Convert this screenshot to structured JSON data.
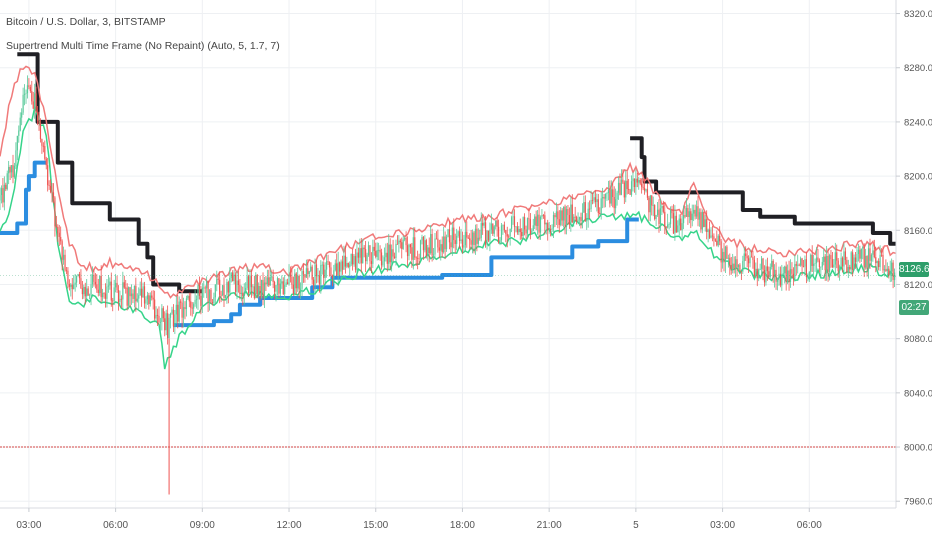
{
  "header": {
    "symbol_line": "Bitcoin / U.S. Dollar, 3, BITSTAMP",
    "indicator_line": "Supertrend Multi Time Frame (No Repaint) (Auto, 5, 1.7, 7)"
  },
  "price_tags": {
    "last_price": "8126.60",
    "countdown": "02:27"
  },
  "colors": {
    "background": "#ffffff",
    "grid": "#eef0f3",
    "candle_up": "#58c99a",
    "candle_down": "#ef5350",
    "trend_up": "#2b8de0",
    "trend_down": "#1f1f24",
    "supertrend_up_tf": "#36d48a",
    "supertrend_down_tf": "#f07a7a",
    "reference_line": "#d04545",
    "axis_text": "#555555"
  },
  "chart_data": {
    "type": "line",
    "title": "Bitcoin / U.S. Dollar, 3, BITSTAMP",
    "x_ticks": [
      "03:00",
      "06:00",
      "09:00",
      "12:00",
      "15:00",
      "18:00",
      "21:00",
      "5",
      "03:00",
      "06:00"
    ],
    "x_tick_times": [
      3,
      6,
      9,
      12,
      15,
      18,
      21,
      24,
      27,
      30
    ],
    "xlim": [
      2,
      33
    ],
    "y_ticks": [
      "8320.00",
      "8280.00",
      "8240.00",
      "8200.00",
      "8160.00",
      "8120.00",
      "8080.00",
      "8040.00",
      "8000.00",
      "7960.00"
    ],
    "ylim": [
      7955,
      8330
    ],
    "reference_line": 8000,
    "last_price": 8126.6,
    "grid": true,
    "series": [
      {
        "style": "step",
        "points": [
          [
            2.0,
            8158
          ],
          [
            2.6,
            8158
          ],
          [
            2.6,
            8165
          ],
          [
            2.9,
            8165
          ],
          [
            2.9,
            8190
          ],
          [
            3.0,
            8190
          ],
          [
            3.0,
            8200
          ],
          [
            3.2,
            8200
          ],
          [
            3.2,
            8210
          ],
          [
            3.6,
            8210
          ]
        ]
      },
      {
        "style": "step",
        "points": [
          [
            2.6,
            8290
          ],
          [
            3.3,
            8290
          ],
          [
            3.3,
            8240
          ],
          [
            4.0,
            8240
          ],
          [
            4.0,
            8210
          ],
          [
            4.5,
            8210
          ],
          [
            4.5,
            8180
          ],
          [
            5.8,
            8180
          ],
          [
            5.8,
            8168
          ],
          [
            6.8,
            8168
          ],
          [
            6.8,
            8150
          ],
          [
            7.1,
            8150
          ],
          [
            7.1,
            8140
          ],
          [
            7.3,
            8140
          ],
          [
            7.3,
            8120
          ],
          [
            8.2,
            8120
          ],
          [
            8.2,
            8115
          ],
          [
            9.0,
            8115
          ]
        ]
      },
      {
        "style": "step",
        "points": [
          [
            8.0,
            8090
          ],
          [
            9.4,
            8090
          ],
          [
            9.4,
            8093
          ],
          [
            10.0,
            8093
          ],
          [
            10.0,
            8098
          ],
          [
            10.3,
            8098
          ],
          [
            10.3,
            8105
          ],
          [
            11.0,
            8105
          ],
          [
            11.0,
            8110
          ],
          [
            12.8,
            8110
          ],
          [
            12.8,
            8118
          ],
          [
            13.5,
            8118
          ],
          [
            13.5,
            8125
          ],
          [
            17.3,
            8125
          ],
          [
            17.3,
            8127
          ],
          [
            19.0,
            8127
          ],
          [
            19.0,
            8140
          ],
          [
            21.8,
            8140
          ],
          [
            21.8,
            8148
          ],
          [
            22.7,
            8148
          ],
          [
            22.7,
            8152
          ],
          [
            23.7,
            8152
          ],
          [
            23.7,
            8168
          ],
          [
            24.1,
            8168
          ]
        ]
      },
      {
        "style": "step",
        "points": [
          [
            23.8,
            8228
          ],
          [
            24.2,
            8228
          ],
          [
            24.2,
            8214
          ],
          [
            24.3,
            8214
          ],
          [
            24.3,
            8196
          ],
          [
            24.7,
            8196
          ],
          [
            24.7,
            8188
          ],
          [
            27.7,
            8188
          ],
          [
            27.7,
            8175
          ],
          [
            28.3,
            8175
          ],
          [
            28.3,
            8170
          ],
          [
            29.5,
            8170
          ],
          [
            29.5,
            8165
          ],
          [
            32.2,
            8165
          ],
          [
            32.2,
            8158
          ],
          [
            32.8,
            8158
          ],
          [
            32.8,
            8150
          ],
          [
            33.0,
            8150
          ]
        ]
      },
      {
        "style": "noisy",
        "points": [
          [
            2.0,
            8160
          ],
          [
            2.4,
            8178
          ],
          [
            2.8,
            8232
          ],
          [
            3.2,
            8248
          ],
          [
            3.6,
            8232
          ],
          [
            4.0,
            8150
          ],
          [
            4.4,
            8108
          ],
          [
            4.8,
            8106
          ],
          [
            5.3,
            8110
          ],
          [
            5.8,
            8108
          ],
          [
            6.4,
            8103
          ],
          [
            7.0,
            8098
          ],
          [
            7.5,
            8089
          ],
          [
            7.7,
            8060
          ],
          [
            8.0,
            8074
          ],
          [
            8.6,
            8092
          ],
          [
            9.2,
            8106
          ],
          [
            10.0,
            8112
          ],
          [
            11.0,
            8113
          ],
          [
            12.0,
            8112
          ],
          [
            13.0,
            8117
          ],
          [
            14.0,
            8126
          ],
          [
            15.0,
            8131
          ],
          [
            16.0,
            8135
          ],
          [
            17.0,
            8140
          ],
          [
            18.0,
            8146
          ],
          [
            19.0,
            8150
          ],
          [
            20.0,
            8153
          ],
          [
            21.0,
            8158
          ],
          [
            22.0,
            8165
          ],
          [
            23.0,
            8170
          ],
          [
            23.8,
            8172
          ],
          [
            24.4,
            8168
          ],
          [
            25.0,
            8160
          ],
          [
            25.6,
            8155
          ],
          [
            26.0,
            8160
          ],
          [
            26.6,
            8145
          ],
          [
            27.0,
            8136
          ],
          [
            28.0,
            8128
          ],
          [
            29.0,
            8124
          ],
          [
            30.0,
            8126
          ],
          [
            31.0,
            8130
          ],
          [
            32.0,
            8133
          ],
          [
            33.0,
            8126
          ]
        ]
      },
      {
        "style": "noisy",
        "points": [
          [
            2.0,
            8215
          ],
          [
            2.4,
            8260
          ],
          [
            2.8,
            8282
          ],
          [
            3.2,
            8276
          ],
          [
            3.6,
            8240
          ],
          [
            4.0,
            8192
          ],
          [
            4.4,
            8150
          ],
          [
            4.8,
            8136
          ],
          [
            5.3,
            8130
          ],
          [
            5.8,
            8136
          ],
          [
            6.4,
            8133
          ],
          [
            7.0,
            8128
          ],
          [
            7.5,
            8120
          ],
          [
            8.0,
            8110
          ],
          [
            8.6,
            8118
          ],
          [
            9.2,
            8123
          ],
          [
            10.0,
            8131
          ],
          [
            11.0,
            8133
          ],
          [
            12.0,
            8129
          ],
          [
            13.0,
            8138
          ],
          [
            14.0,
            8148
          ],
          [
            15.0,
            8156
          ],
          [
            16.0,
            8158
          ],
          [
            17.0,
            8164
          ],
          [
            18.0,
            8168
          ],
          [
            19.0,
            8170
          ],
          [
            20.0,
            8176
          ],
          [
            21.0,
            8180
          ],
          [
            22.0,
            8186
          ],
          [
            23.0,
            8190
          ],
          [
            23.8,
            8207
          ],
          [
            24.4,
            8196
          ],
          [
            25.0,
            8180
          ],
          [
            25.6,
            8172
          ],
          [
            26.0,
            8195
          ],
          [
            26.6,
            8165
          ],
          [
            27.0,
            8153
          ],
          [
            28.0,
            8147
          ],
          [
            29.0,
            8143
          ],
          [
            30.0,
            8145
          ],
          [
            31.0,
            8148
          ],
          [
            32.0,
            8150
          ],
          [
            33.0,
            8143
          ]
        ]
      },
      {
        "style": "candles",
        "points": [
          [
            2.0,
            8182
          ],
          [
            2.5,
            8210
          ],
          [
            2.8,
            8262
          ],
          [
            3.2,
            8258
          ],
          [
            3.6,
            8205
          ],
          [
            4.0,
            8160
          ],
          [
            4.4,
            8122
          ],
          [
            4.8,
            8118
          ],
          [
            5.3,
            8121
          ],
          [
            5.8,
            8115
          ],
          [
            6.4,
            8112
          ],
          [
            7.0,
            8110
          ],
          [
            7.5,
            8100
          ],
          [
            7.8,
            8088
          ],
          [
            8.0,
            8095
          ],
          [
            8.6,
            8110
          ],
          [
            9.2,
            8114
          ],
          [
            10.0,
            8120
          ],
          [
            11.0,
            8118
          ],
          [
            12.0,
            8120
          ],
          [
            13.0,
            8127
          ],
          [
            14.0,
            8136
          ],
          [
            15.0,
            8142
          ],
          [
            16.0,
            8146
          ],
          [
            17.0,
            8150
          ],
          [
            18.0,
            8155
          ],
          [
            19.0,
            8158
          ],
          [
            20.0,
            8163
          ],
          [
            21.0,
            8167
          ],
          [
            22.0,
            8172
          ],
          [
            23.0,
            8180
          ],
          [
            23.8,
            8195
          ],
          [
            24.4,
            8182
          ],
          [
            25.0,
            8168
          ],
          [
            25.6,
            8162
          ],
          [
            26.0,
            8180
          ],
          [
            26.6,
            8155
          ],
          [
            27.0,
            8143
          ],
          [
            28.0,
            8132
          ],
          [
            29.0,
            8128
          ],
          [
            30.0,
            8133
          ],
          [
            31.0,
            8136
          ],
          [
            32.0,
            8140
          ],
          [
            33.0,
            8130
          ]
        ]
      }
    ]
  }
}
